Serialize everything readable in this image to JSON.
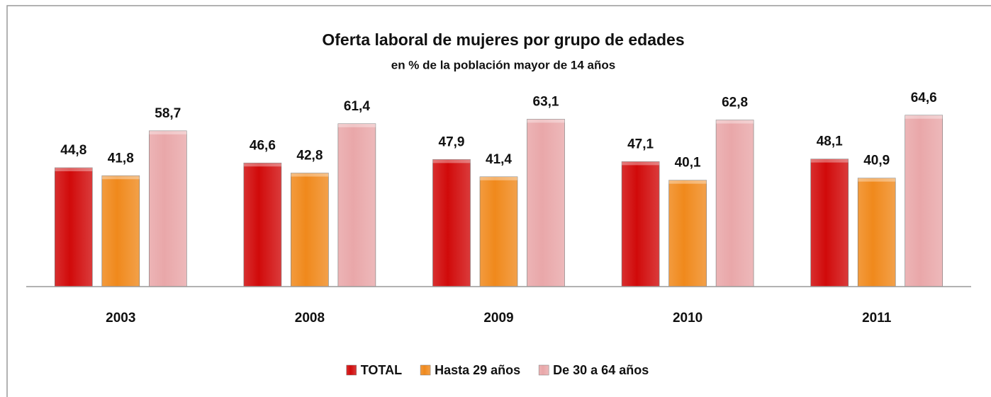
{
  "chart_data": {
    "type": "bar",
    "title": "Oferta laboral de mujeres por grupo de edades",
    "subtitle": "en % de la población mayor de 14 años",
    "categories": [
      "2003",
      "2008",
      "2009",
      "2010",
      "2011"
    ],
    "series": [
      {
        "name": "TOTAL",
        "color": "#d10a0a",
        "values": [
          44.8,
          46.6,
          47.9,
          47.1,
          48.1
        ],
        "value_labels": [
          "44,8",
          "46,6",
          "47,9",
          "47,1",
          "48,1"
        ]
      },
      {
        "name": "Hasta 29 años",
        "color": "#f0891c",
        "values": [
          41.8,
          42.8,
          41.4,
          40.1,
          40.9
        ],
        "value_labels": [
          "41,8",
          "42,8",
          "41,4",
          "40,1",
          "40,9"
        ]
      },
      {
        "name": "De 30 a 64 años",
        "color": "#e9a7a9",
        "values": [
          58.7,
          61.4,
          63.1,
          62.8,
          64.6
        ],
        "value_labels": [
          "58,7",
          "61,4",
          "63,1",
          "62,8",
          "64,6"
        ]
      }
    ],
    "ylim": [
      0,
      80
    ],
    "legend": "bottom"
  }
}
